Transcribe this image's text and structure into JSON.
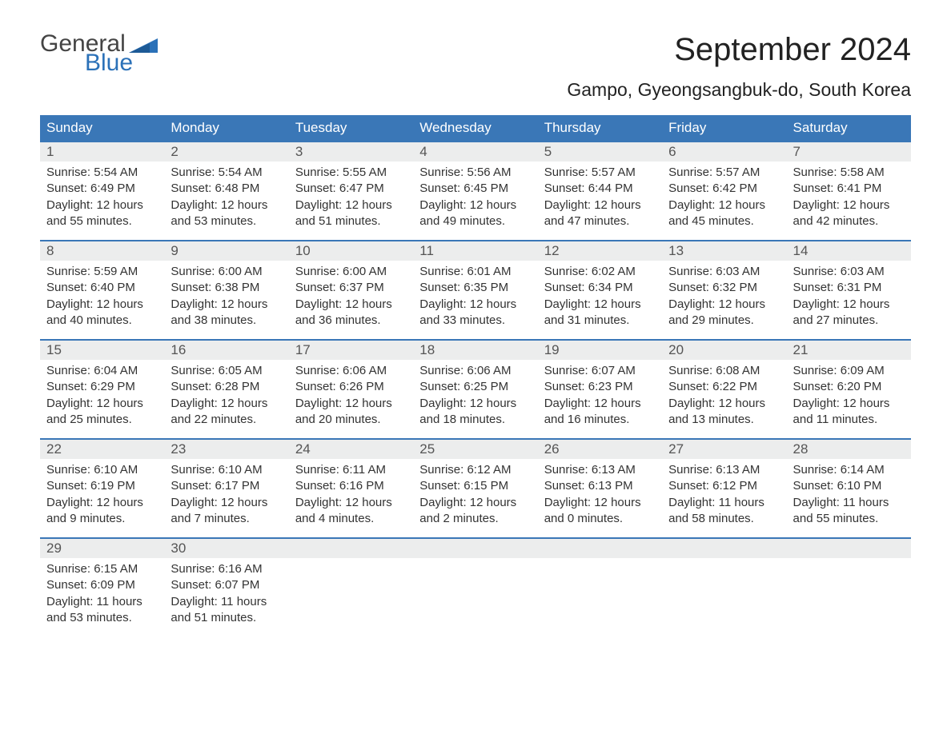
{
  "logo": {
    "general": "General",
    "blue": "Blue",
    "flag_color": "#2b71b8"
  },
  "title": "September 2024",
  "location": "Gampo, Gyeongsangbuk-do, South Korea",
  "header_bg": "#3a77b7",
  "daynum_bg": "#eceded",
  "rule_color": "#3a77b7",
  "text_color": "#333333",
  "title_fontsize": 40,
  "location_fontsize": 23,
  "weekday_fontsize": 17,
  "body_fontsize": 15,
  "weekdays": [
    "Sunday",
    "Monday",
    "Tuesday",
    "Wednesday",
    "Thursday",
    "Friday",
    "Saturday"
  ],
  "weeks": [
    [
      {
        "n": "1",
        "sr": "Sunrise: 5:54 AM",
        "ss": "Sunset: 6:49 PM",
        "d1": "Daylight: 12 hours",
        "d2": "and 55 minutes."
      },
      {
        "n": "2",
        "sr": "Sunrise: 5:54 AM",
        "ss": "Sunset: 6:48 PM",
        "d1": "Daylight: 12 hours",
        "d2": "and 53 minutes."
      },
      {
        "n": "3",
        "sr": "Sunrise: 5:55 AM",
        "ss": "Sunset: 6:47 PM",
        "d1": "Daylight: 12 hours",
        "d2": "and 51 minutes."
      },
      {
        "n": "4",
        "sr": "Sunrise: 5:56 AM",
        "ss": "Sunset: 6:45 PM",
        "d1": "Daylight: 12 hours",
        "d2": "and 49 minutes."
      },
      {
        "n": "5",
        "sr": "Sunrise: 5:57 AM",
        "ss": "Sunset: 6:44 PM",
        "d1": "Daylight: 12 hours",
        "d2": "and 47 minutes."
      },
      {
        "n": "6",
        "sr": "Sunrise: 5:57 AM",
        "ss": "Sunset: 6:42 PM",
        "d1": "Daylight: 12 hours",
        "d2": "and 45 minutes."
      },
      {
        "n": "7",
        "sr": "Sunrise: 5:58 AM",
        "ss": "Sunset: 6:41 PM",
        "d1": "Daylight: 12 hours",
        "d2": "and 42 minutes."
      }
    ],
    [
      {
        "n": "8",
        "sr": "Sunrise: 5:59 AM",
        "ss": "Sunset: 6:40 PM",
        "d1": "Daylight: 12 hours",
        "d2": "and 40 minutes."
      },
      {
        "n": "9",
        "sr": "Sunrise: 6:00 AM",
        "ss": "Sunset: 6:38 PM",
        "d1": "Daylight: 12 hours",
        "d2": "and 38 minutes."
      },
      {
        "n": "10",
        "sr": "Sunrise: 6:00 AM",
        "ss": "Sunset: 6:37 PM",
        "d1": "Daylight: 12 hours",
        "d2": "and 36 minutes."
      },
      {
        "n": "11",
        "sr": "Sunrise: 6:01 AM",
        "ss": "Sunset: 6:35 PM",
        "d1": "Daylight: 12 hours",
        "d2": "and 33 minutes."
      },
      {
        "n": "12",
        "sr": "Sunrise: 6:02 AM",
        "ss": "Sunset: 6:34 PM",
        "d1": "Daylight: 12 hours",
        "d2": "and 31 minutes."
      },
      {
        "n": "13",
        "sr": "Sunrise: 6:03 AM",
        "ss": "Sunset: 6:32 PM",
        "d1": "Daylight: 12 hours",
        "d2": "and 29 minutes."
      },
      {
        "n": "14",
        "sr": "Sunrise: 6:03 AM",
        "ss": "Sunset: 6:31 PM",
        "d1": "Daylight: 12 hours",
        "d2": "and 27 minutes."
      }
    ],
    [
      {
        "n": "15",
        "sr": "Sunrise: 6:04 AM",
        "ss": "Sunset: 6:29 PM",
        "d1": "Daylight: 12 hours",
        "d2": "and 25 minutes."
      },
      {
        "n": "16",
        "sr": "Sunrise: 6:05 AM",
        "ss": "Sunset: 6:28 PM",
        "d1": "Daylight: 12 hours",
        "d2": "and 22 minutes."
      },
      {
        "n": "17",
        "sr": "Sunrise: 6:06 AM",
        "ss": "Sunset: 6:26 PM",
        "d1": "Daylight: 12 hours",
        "d2": "and 20 minutes."
      },
      {
        "n": "18",
        "sr": "Sunrise: 6:06 AM",
        "ss": "Sunset: 6:25 PM",
        "d1": "Daylight: 12 hours",
        "d2": "and 18 minutes."
      },
      {
        "n": "19",
        "sr": "Sunrise: 6:07 AM",
        "ss": "Sunset: 6:23 PM",
        "d1": "Daylight: 12 hours",
        "d2": "and 16 minutes."
      },
      {
        "n": "20",
        "sr": "Sunrise: 6:08 AM",
        "ss": "Sunset: 6:22 PM",
        "d1": "Daylight: 12 hours",
        "d2": "and 13 minutes."
      },
      {
        "n": "21",
        "sr": "Sunrise: 6:09 AM",
        "ss": "Sunset: 6:20 PM",
        "d1": "Daylight: 12 hours",
        "d2": "and 11 minutes."
      }
    ],
    [
      {
        "n": "22",
        "sr": "Sunrise: 6:10 AM",
        "ss": "Sunset: 6:19 PM",
        "d1": "Daylight: 12 hours",
        "d2": "and 9 minutes."
      },
      {
        "n": "23",
        "sr": "Sunrise: 6:10 AM",
        "ss": "Sunset: 6:17 PM",
        "d1": "Daylight: 12 hours",
        "d2": "and 7 minutes."
      },
      {
        "n": "24",
        "sr": "Sunrise: 6:11 AM",
        "ss": "Sunset: 6:16 PM",
        "d1": "Daylight: 12 hours",
        "d2": "and 4 minutes."
      },
      {
        "n": "25",
        "sr": "Sunrise: 6:12 AM",
        "ss": "Sunset: 6:15 PM",
        "d1": "Daylight: 12 hours",
        "d2": "and 2 minutes."
      },
      {
        "n": "26",
        "sr": "Sunrise: 6:13 AM",
        "ss": "Sunset: 6:13 PM",
        "d1": "Daylight: 12 hours",
        "d2": "and 0 minutes."
      },
      {
        "n": "27",
        "sr": "Sunrise: 6:13 AM",
        "ss": "Sunset: 6:12 PM",
        "d1": "Daylight: 11 hours",
        "d2": "and 58 minutes."
      },
      {
        "n": "28",
        "sr": "Sunrise: 6:14 AM",
        "ss": "Sunset: 6:10 PM",
        "d1": "Daylight: 11 hours",
        "d2": "and 55 minutes."
      }
    ],
    [
      {
        "n": "29",
        "sr": "Sunrise: 6:15 AM",
        "ss": "Sunset: 6:09 PM",
        "d1": "Daylight: 11 hours",
        "d2": "and 53 minutes."
      },
      {
        "n": "30",
        "sr": "Sunrise: 6:16 AM",
        "ss": "Sunset: 6:07 PM",
        "d1": "Daylight: 11 hours",
        "d2": "and 51 minutes."
      },
      {
        "n": "",
        "sr": "",
        "ss": "",
        "d1": "",
        "d2": ""
      },
      {
        "n": "",
        "sr": "",
        "ss": "",
        "d1": "",
        "d2": ""
      },
      {
        "n": "",
        "sr": "",
        "ss": "",
        "d1": "",
        "d2": ""
      },
      {
        "n": "",
        "sr": "",
        "ss": "",
        "d1": "",
        "d2": ""
      },
      {
        "n": "",
        "sr": "",
        "ss": "",
        "d1": "",
        "d2": ""
      }
    ]
  ]
}
